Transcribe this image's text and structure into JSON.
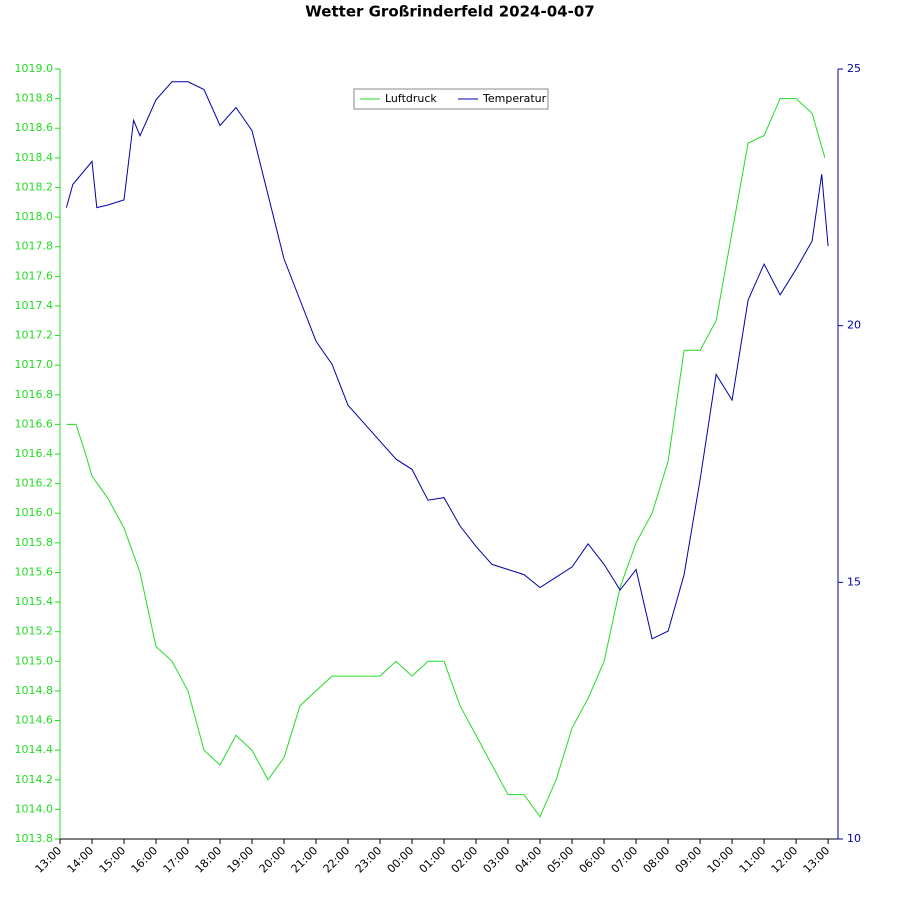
{
  "chart_data": {
    "type": "line",
    "title": "Wetter Großrinderfeld 2024-04-07",
    "xlim": [
      0,
      24.31
    ],
    "xticks": [
      {
        "value": 0,
        "label": "13:00"
      },
      {
        "value": 1,
        "label": "14:00"
      },
      {
        "value": 2,
        "label": "15:00"
      },
      {
        "value": 3,
        "label": "16:00"
      },
      {
        "value": 4,
        "label": "17:00"
      },
      {
        "value": 5,
        "label": "18:00"
      },
      {
        "value": 6,
        "label": "19:00"
      },
      {
        "value": 7,
        "label": "20:00"
      },
      {
        "value": 8,
        "label": "21:00"
      },
      {
        "value": 9,
        "label": "22:00"
      },
      {
        "value": 10,
        "label": "23:00"
      },
      {
        "value": 11,
        "label": "00:00"
      },
      {
        "value": 12,
        "label": "01:00"
      },
      {
        "value": 13,
        "label": "02:00"
      },
      {
        "value": 14,
        "label": "03:00"
      },
      {
        "value": 15,
        "label": "04:00"
      },
      {
        "value": 16,
        "label": "05:00"
      },
      {
        "value": 17,
        "label": "06:00"
      },
      {
        "value": 18,
        "label": "07:00"
      },
      {
        "value": 19,
        "label": "08:00"
      },
      {
        "value": 20,
        "label": "09:00"
      },
      {
        "value": 21,
        "label": "10:00"
      },
      {
        "value": 22,
        "label": "11:00"
      },
      {
        "value": 23,
        "label": "12:00"
      },
      {
        "value": 24,
        "label": "13:00"
      }
    ],
    "ylim": [
      1013.8,
      1019.0
    ],
    "yticks": [
      {
        "value": 1013.8,
        "label": "1013.8"
      },
      {
        "value": 1014.0,
        "label": "1014.0"
      },
      {
        "value": 1014.2,
        "label": "1014.2"
      },
      {
        "value": 1014.4,
        "label": "1014.4"
      },
      {
        "value": 1014.6,
        "label": "1014.6"
      },
      {
        "value": 1014.8,
        "label": "1014.8"
      },
      {
        "value": 1015.0,
        "label": "1015.0"
      },
      {
        "value": 1015.2,
        "label": "1015.2"
      },
      {
        "value": 1015.4,
        "label": "1015.4"
      },
      {
        "value": 1015.6,
        "label": "1015.6"
      },
      {
        "value": 1015.8,
        "label": "1015.8"
      },
      {
        "value": 1016.0,
        "label": "1016.0"
      },
      {
        "value": 1016.2,
        "label": "1016.2"
      },
      {
        "value": 1016.4,
        "label": "1016.4"
      },
      {
        "value": 1016.6,
        "label": "1016.6"
      },
      {
        "value": 1016.8,
        "label": "1016.8"
      },
      {
        "value": 1017.0,
        "label": "1017.0"
      },
      {
        "value": 1017.2,
        "label": "1017.2"
      },
      {
        "value": 1017.4,
        "label": "1017.4"
      },
      {
        "value": 1017.6,
        "label": "1017.6"
      },
      {
        "value": 1017.8,
        "label": "1017.8"
      },
      {
        "value": 1018.0,
        "label": "1018.0"
      },
      {
        "value": 1018.2,
        "label": "1018.2"
      },
      {
        "value": 1018.4,
        "label": "1018.4"
      },
      {
        "value": 1018.6,
        "label": "1018.6"
      },
      {
        "value": 1018.8,
        "label": "1018.8"
      },
      {
        "value": 1019.0,
        "label": "1019.0"
      }
    ],
    "y2lim": [
      10,
      25
    ],
    "y2ticks": [
      10,
      15,
      20,
      25
    ],
    "legend": "top",
    "series": [
      {
        "name": "Luftdruck",
        "color": "#22dd22",
        "x": [
          0.2,
          0.5,
          0.8,
          1.0,
          1.5,
          2.0,
          2.5,
          3.0,
          3.5,
          4.0,
          4.5,
          5.0,
          5.5,
          6.0,
          6.5,
          7.0,
          7.5,
          8.0,
          8.5,
          9.0,
          9.5,
          10.0,
          10.5,
          11.0,
          11.5,
          12.0,
          12.5,
          13.0,
          13.5,
          14.0,
          14.5,
          15.0,
          15.5,
          16.0,
          16.5,
          17.0,
          17.5,
          18.0,
          18.5,
          19.0,
          19.5,
          20.0,
          20.5,
          21.0,
          21.5,
          22.0,
          22.5,
          23.0,
          23.5,
          23.9
        ],
        "values": [
          1016.6,
          1016.6,
          1016.4,
          1016.25,
          1016.1,
          1015.9,
          1015.6,
          1015.1,
          1015.0,
          1014.8,
          1014.4,
          1014.3,
          1014.5,
          1014.4,
          1014.2,
          1014.35,
          1014.7,
          1014.8,
          1014.9,
          1014.9,
          1014.9,
          1014.9,
          1015.0,
          1014.9,
          1015.0,
          1015.0,
          1014.7,
          1014.5,
          1014.3,
          1014.1,
          1014.1,
          1013.95,
          1014.2,
          1014.55,
          1014.75,
          1015.0,
          1015.5,
          1015.8,
          1016.0,
          1016.35,
          1017.1,
          1017.1,
          1017.3,
          1017.9,
          1018.5,
          1018.55,
          1018.8,
          1018.8,
          1018.7,
          1018.4
        ]
      },
      {
        "name": "Temperatur",
        "color": "#0000aa",
        "axis": "y2",
        "x": [
          0.2,
          0.4,
          1.0,
          1.15,
          1.5,
          2.0,
          2.3,
          2.5,
          3.0,
          3.5,
          4.0,
          4.5,
          5.0,
          5.5,
          6.0,
          6.5,
          7.0,
          7.5,
          8.0,
          8.5,
          9.0,
          9.5,
          10.0,
          10.5,
          11.0,
          11.5,
          12.0,
          12.5,
          13.0,
          13.5,
          14.0,
          14.5,
          15.0,
          15.5,
          16.0,
          16.5,
          17.0,
          17.5,
          18.0,
          18.5,
          19.0,
          19.5,
          20.0,
          20.5,
          21.0,
          21.5,
          22.0,
          22.5,
          23.0,
          23.5,
          23.8,
          24.0
        ],
        "values": [
          22.3,
          22.75,
          23.2,
          22.3,
          22.35,
          22.45,
          24.0,
          23.7,
          24.4,
          24.75,
          24.75,
          24.6,
          23.9,
          24.25,
          23.8,
          22.55,
          21.3,
          20.5,
          19.7,
          19.25,
          18.45,
          18.1,
          17.75,
          17.4,
          17.2,
          16.6,
          16.65,
          16.1,
          15.7,
          15.35,
          15.25,
          15.15,
          14.9,
          15.1,
          15.3,
          15.75,
          15.35,
          14.85,
          15.25,
          13.9,
          14.05,
          15.15,
          17.0,
          19.05,
          18.55,
          20.5,
          21.2,
          20.6,
          21.1,
          21.65,
          22.95,
          21.55
        ]
      }
    ]
  }
}
